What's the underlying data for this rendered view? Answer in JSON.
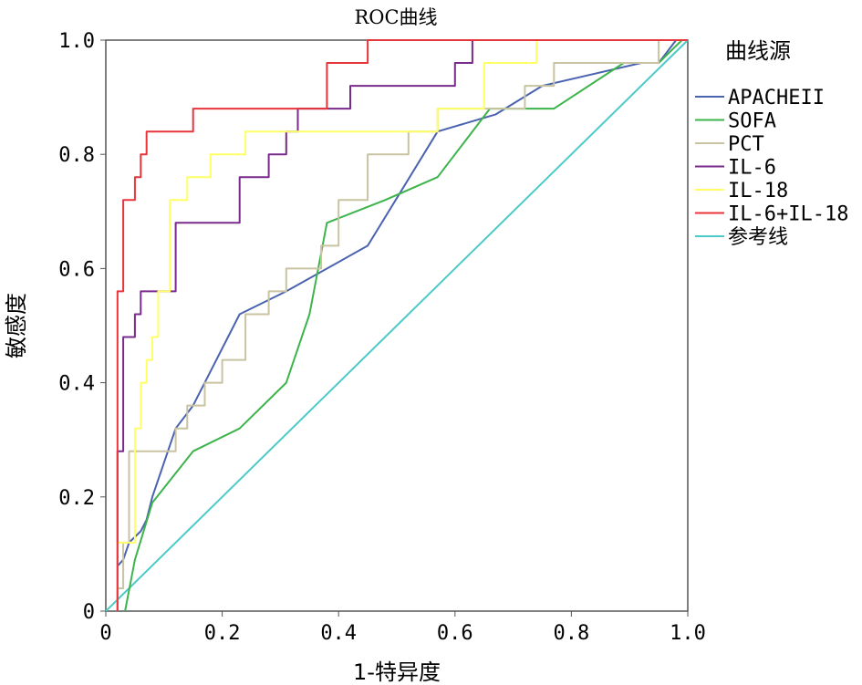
{
  "chart_data": {
    "type": "line",
    "title": "ROC曲线",
    "xlabel": "1-特异度",
    "ylabel": "敏感度",
    "xlim": [
      0,
      1
    ],
    "ylim": [
      0,
      1
    ],
    "x_ticks": [
      "0",
      "0.2",
      "0.4",
      "0.6",
      "0.8",
      "1.0"
    ],
    "y_ticks": [
      "0",
      "0.2",
      "0.4",
      "0.6",
      "0.8",
      "1.0"
    ],
    "legend_title": "曲线源",
    "legend_position": "right",
    "grid": false,
    "series": [
      {
        "name": "APACHEII",
        "color": "#4a63b0",
        "x": [
          0.021,
          0.03,
          0.04,
          0.06,
          0.07,
          0.08,
          0.12,
          0.15,
          0.23,
          0.31,
          0.45,
          0.57,
          0.67,
          0.75,
          0.92,
          0.95,
          0.98
        ],
        "y": [
          0.08,
          0.09,
          0.12,
          0.14,
          0.16,
          0.2,
          0.32,
          0.36,
          0.52,
          0.56,
          0.64,
          0.84,
          0.87,
          0.92,
          0.96,
          0.96,
          1.0
        ]
      },
      {
        "name": "SOFA",
        "color": "#3cb44b",
        "x": [
          0.033,
          0.05,
          0.08,
          0.15,
          0.23,
          0.31,
          0.35,
          0.38,
          0.48,
          0.57,
          0.66,
          0.77,
          0.89,
          0.95,
          0.99
        ],
        "y": [
          0.0,
          0.09,
          0.19,
          0.28,
          0.32,
          0.4,
          0.52,
          0.68,
          0.72,
          0.76,
          0.88,
          0.88,
          0.96,
          0.96,
          1.0
        ]
      },
      {
        "name": "PCT",
        "color": "#c8c3a0",
        "x": [
          0.02,
          0.02,
          0.03,
          0.03,
          0.04,
          0.04,
          0.12,
          0.12,
          0.14,
          0.14,
          0.17,
          0.17,
          0.2,
          0.2,
          0.24,
          0.24,
          0.28,
          0.28,
          0.31,
          0.31,
          0.37,
          0.37,
          0.4,
          0.4,
          0.45,
          0.45,
          0.52,
          0.52,
          0.57,
          0.57,
          0.62,
          0.62,
          0.72,
          0.72,
          0.77,
          0.77,
          0.95,
          0.95,
          1.0
        ],
        "y": [
          0.0,
          0.04,
          0.04,
          0.12,
          0.12,
          0.28,
          0.28,
          0.32,
          0.32,
          0.36,
          0.36,
          0.4,
          0.4,
          0.44,
          0.44,
          0.52,
          0.52,
          0.56,
          0.56,
          0.6,
          0.6,
          0.64,
          0.64,
          0.72,
          0.72,
          0.8,
          0.8,
          0.84,
          0.84,
          0.88,
          0.88,
          0.88,
          0.88,
          0.92,
          0.92,
          0.96,
          0.96,
          1.0,
          1.0
        ]
      },
      {
        "name": "IL-6",
        "color": "#7a2a8c",
        "x": [
          0.02,
          0.02,
          0.03,
          0.03,
          0.05,
          0.05,
          0.06,
          0.06,
          0.12,
          0.12,
          0.23,
          0.23,
          0.28,
          0.28,
          0.31,
          0.31,
          0.33,
          0.33,
          0.42,
          0.42,
          0.6,
          0.6,
          0.63,
          0.63,
          0.98
        ],
        "y": [
          0.0,
          0.28,
          0.28,
          0.48,
          0.48,
          0.52,
          0.52,
          0.56,
          0.56,
          0.68,
          0.68,
          0.76,
          0.76,
          0.8,
          0.8,
          0.84,
          0.84,
          0.88,
          0.88,
          0.92,
          0.92,
          0.96,
          0.96,
          1.0,
          1.0
        ]
      },
      {
        "name": "IL-18",
        "color": "#ffff66",
        "x": [
          0.02,
          0.02,
          0.05,
          0.05,
          0.06,
          0.06,
          0.07,
          0.07,
          0.08,
          0.08,
          0.09,
          0.09,
          0.11,
          0.11,
          0.14,
          0.14,
          0.18,
          0.18,
          0.24,
          0.24,
          0.39,
          0.39,
          0.57,
          0.57,
          0.65,
          0.65,
          0.74,
          0.74,
          1.0
        ],
        "y": [
          0.0,
          0.12,
          0.12,
          0.32,
          0.32,
          0.4,
          0.4,
          0.44,
          0.44,
          0.48,
          0.48,
          0.56,
          0.56,
          0.72,
          0.72,
          0.76,
          0.76,
          0.8,
          0.8,
          0.84,
          0.84,
          0.84,
          0.84,
          0.88,
          0.88,
          0.96,
          0.96,
          1.0,
          1.0
        ]
      },
      {
        "name": "IL-6+IL-18",
        "color": "#e8343b",
        "x": [
          0.02,
          0.02,
          0.03,
          0.03,
          0.05,
          0.05,
          0.06,
          0.06,
          0.07,
          0.07,
          0.08,
          0.08,
          0.15,
          0.15,
          0.38,
          0.38,
          0.45,
          0.45,
          0.46,
          0.46,
          1.0
        ],
        "y": [
          0.0,
          0.56,
          0.56,
          0.72,
          0.72,
          0.76,
          0.76,
          0.8,
          0.8,
          0.84,
          0.84,
          0.84,
          0.84,
          0.88,
          0.88,
          0.96,
          0.96,
          1.0,
          1.0,
          1.0,
          1.0
        ]
      },
      {
        "name": "参考线",
        "color": "#4cc9c9",
        "x": [
          0.0,
          1.0
        ],
        "y": [
          0.0,
          1.0
        ]
      }
    ]
  }
}
